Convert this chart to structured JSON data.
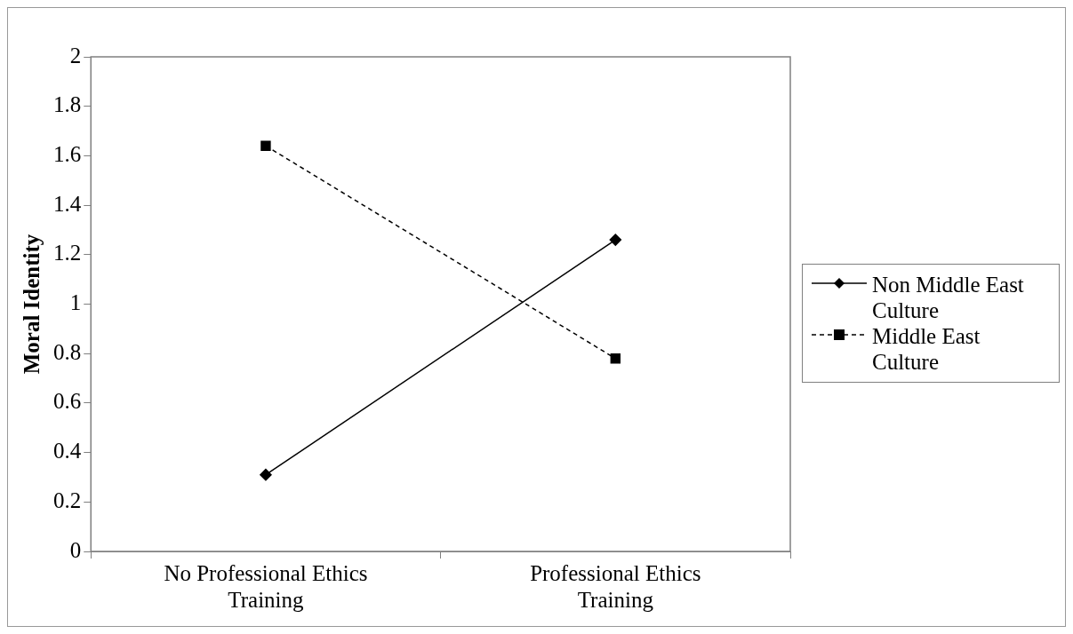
{
  "chart_data": {
    "type": "line",
    "ylabel": "Moral Identity",
    "categories": [
      "No Professional Ethics Training",
      "Professional Ethics Training"
    ],
    "series": [
      {
        "name": "Non Middle East Culture",
        "color": "#000000",
        "values": [
          0.31,
          1.26
        ],
        "marker": "diamond",
        "line_style": "solid"
      },
      {
        "name": "Middle East Culture",
        "color": "#000000",
        "values": [
          1.64,
          0.78
        ],
        "marker": "square",
        "line_style": "dashed"
      }
    ],
    "ylim": [
      0,
      2
    ],
    "yticks": [
      0,
      0.2,
      0.4,
      0.6,
      0.8,
      1,
      1.2,
      1.4,
      1.6,
      1.8,
      2
    ],
    "grid": false,
    "legend": "right"
  }
}
